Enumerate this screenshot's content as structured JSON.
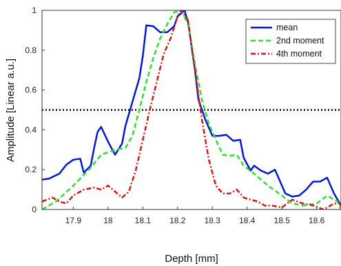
{
  "chart_data": {
    "type": "line",
    "xlabel": "Depth [mm]",
    "ylabel": "Amplitude [Linear a.u.]",
    "xlim": [
      17.81,
      18.67
    ],
    "ylim": [
      0,
      1
    ],
    "xticks": [
      17.9,
      18,
      18.1,
      18.2,
      18.3,
      18.4,
      18.5,
      18.6
    ],
    "yticks": [
      0,
      0.2,
      0.4,
      0.6,
      0.8,
      1
    ],
    "xtick_labels": [
      "17.9",
      "18",
      "18.1",
      "18.2",
      "18.3",
      "18.4",
      "18.5",
      "18.6"
    ],
    "ytick_labels": [
      "0",
      "0.2",
      "0.4",
      "0.6",
      "0.8",
      "1"
    ],
    "legend_position": "top-right",
    "grid": false,
    "threshold": {
      "y": 0.5,
      "color": "#000000",
      "style": "dotted"
    },
    "series": [
      {
        "name": "mean",
        "color": "#0018d8",
        "style": "solid",
        "x": [
          17.81,
          17.83,
          17.86,
          17.88,
          17.9,
          17.92,
          17.93,
          17.95,
          17.96,
          17.97,
          17.98,
          18.0,
          18.02,
          18.04,
          18.05,
          18.07,
          18.09,
          18.1,
          18.11,
          18.13,
          18.15,
          18.17,
          18.19,
          18.2,
          18.22,
          18.23,
          18.25,
          18.26,
          18.28,
          18.3,
          18.32,
          18.34,
          18.36,
          18.38,
          18.39,
          18.41,
          18.42,
          18.44,
          18.46,
          18.48,
          18.5,
          18.51,
          18.53,
          18.55,
          18.57,
          18.59,
          18.61,
          18.63,
          18.65,
          18.67
        ],
        "y": [
          0.15,
          0.155,
          0.18,
          0.225,
          0.25,
          0.255,
          0.185,
          0.22,
          0.31,
          0.39,
          0.415,
          0.34,
          0.275,
          0.33,
          0.42,
          0.54,
          0.66,
          0.77,
          0.925,
          0.92,
          0.89,
          0.89,
          0.92,
          0.97,
          1.0,
          0.94,
          0.7,
          0.55,
          0.45,
          0.37,
          0.37,
          0.375,
          0.345,
          0.35,
          0.26,
          0.195,
          0.22,
          0.195,
          0.18,
          0.2,
          0.12,
          0.08,
          0.065,
          0.07,
          0.1,
          0.14,
          0.14,
          0.16,
          0.08,
          0.02
        ]
      },
      {
        "name": "2nd moment",
        "color": "#2fe02f",
        "style": "dashed",
        "x": [
          17.81,
          17.85,
          17.9,
          17.95,
          17.98,
          18.02,
          18.05,
          18.07,
          18.09,
          18.11,
          18.13,
          18.15,
          18.17,
          18.19,
          18.21,
          18.23,
          18.25,
          18.27,
          18.29,
          18.31,
          18.33,
          18.35,
          18.37,
          18.39,
          18.42,
          18.46,
          18.5,
          18.53,
          18.56,
          18.6,
          18.63,
          18.66,
          18.67
        ],
        "y": [
          0.0,
          0.04,
          0.12,
          0.21,
          0.275,
          0.3,
          0.31,
          0.37,
          0.5,
          0.64,
          0.76,
          0.86,
          0.93,
          0.99,
          1.0,
          0.93,
          0.73,
          0.55,
          0.43,
          0.35,
          0.275,
          0.27,
          0.275,
          0.22,
          0.18,
          0.12,
          0.07,
          0.03,
          0.02,
          0.03,
          0.07,
          0.04,
          0.0
        ]
      },
      {
        "name": "4th moment",
        "color": "#dc1414",
        "style": "dashdot",
        "x": [
          17.81,
          17.84,
          17.86,
          17.88,
          17.9,
          17.93,
          17.96,
          17.98,
          18.0,
          18.02,
          18.04,
          18.06,
          18.08,
          18.1,
          18.12,
          18.14,
          18.16,
          18.18,
          18.2,
          18.21,
          18.23,
          18.25,
          18.27,
          18.29,
          18.31,
          18.33,
          18.35,
          18.37,
          18.39,
          18.41,
          18.43,
          18.45,
          18.47,
          18.5,
          18.53,
          18.56,
          18.59,
          18.62,
          18.65,
          18.67
        ],
        "y": [
          0.04,
          0.06,
          0.04,
          0.03,
          0.07,
          0.1,
          0.11,
          0.1,
          0.12,
          0.09,
          0.06,
          0.09,
          0.2,
          0.35,
          0.5,
          0.64,
          0.78,
          0.86,
          0.97,
          1.0,
          0.95,
          0.7,
          0.45,
          0.25,
          0.12,
          0.08,
          0.08,
          0.1,
          0.06,
          0.05,
          0.04,
          0.02,
          0.02,
          0.01,
          0.05,
          0.03,
          0.02,
          0.0,
          0.03,
          0.03
        ]
      }
    ]
  }
}
